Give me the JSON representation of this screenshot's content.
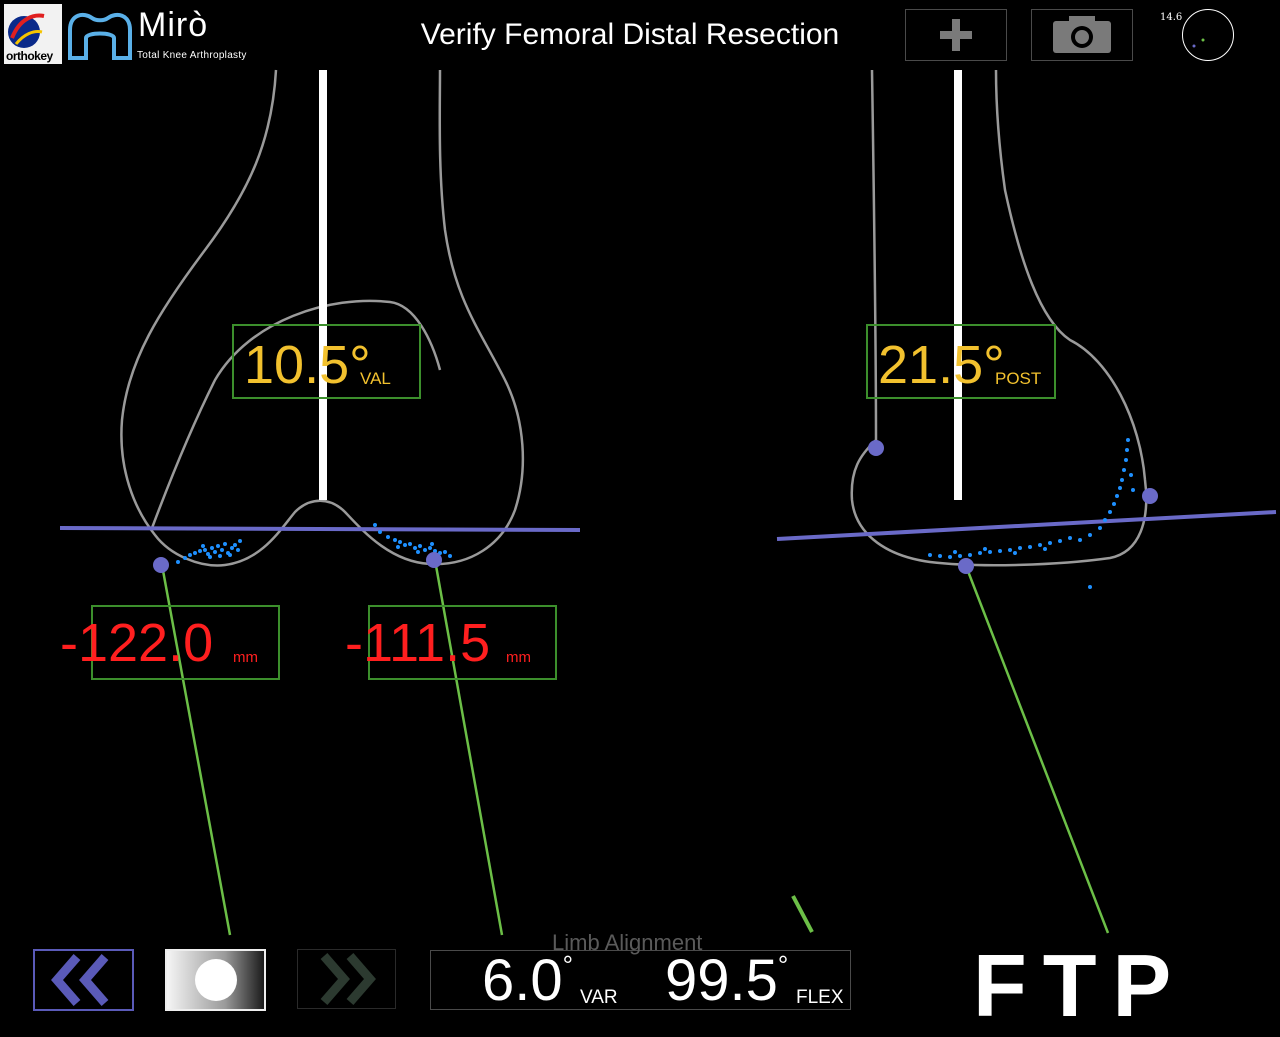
{
  "header": {
    "brand_small": "orthokey",
    "app_name": "Mirò",
    "app_subtitle": "Total Knee Arthroplasty",
    "title": "Verify Femoral Distal Resection",
    "add_icon": "plus-icon",
    "camera_icon": "camera-icon",
    "mini_value": "14.6"
  },
  "frontal_view": {
    "angle_value": "10.5°",
    "angle_unit": "VAL",
    "left_distance": "-122.0",
    "left_distance_unit": "mm",
    "right_distance": "-111.5",
    "right_distance_unit": "mm"
  },
  "sagittal_view": {
    "angle_value": "21.5°",
    "angle_unit": "POST"
  },
  "footer": {
    "back_icon": "double-chevron-left-icon",
    "capture_icon": "record-circle-icon",
    "next_icon": "double-chevron-right-icon",
    "limb_alignment_label": "Limb Alignment",
    "varus_value": "6.0",
    "varus_unit": "VAR",
    "flexion_value": "99.5",
    "flexion_unit": "FLEX",
    "degree_symbol": "°",
    "mode_label": "FTP"
  },
  "colors": {
    "background": "#000000",
    "bone_outline": "#9a9a9a",
    "resection_plane": "#6a6ac8",
    "point_cloud": "#1e90ff",
    "guide_line": "#6cbf47",
    "angle_text": "#f2c12e",
    "distance_text": "#ff1f1f",
    "value_box_border": "#3c8f2c"
  }
}
